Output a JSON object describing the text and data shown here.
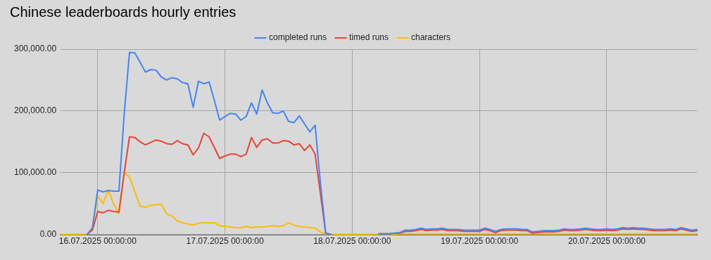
{
  "chart_data": {
    "type": "line",
    "title": "Chinese leaderboards hourly entries",
    "x": [
      "2025-07-15T17:00",
      "2025-07-15T18:00",
      "2025-07-15T19:00",
      "2025-07-15T20:00",
      "2025-07-15T21:00",
      "2025-07-15T22:00",
      "2025-07-15T23:00",
      "2025-07-16T00:00",
      "2025-07-16T01:00",
      "2025-07-16T02:00",
      "2025-07-16T03:00",
      "2025-07-16T04:00",
      "2025-07-16T05:00",
      "2025-07-16T06:00",
      "2025-07-16T07:00",
      "2025-07-16T08:00",
      "2025-07-16T09:00",
      "2025-07-16T10:00",
      "2025-07-16T11:00",
      "2025-07-16T12:00",
      "2025-07-16T13:00",
      "2025-07-16T14:00",
      "2025-07-16T15:00",
      "2025-07-16T16:00",
      "2025-07-16T17:00",
      "2025-07-16T18:00",
      "2025-07-16T19:00",
      "2025-07-16T20:00",
      "2025-07-16T21:00",
      "2025-07-16T22:00",
      "2025-07-16T23:00",
      "2025-07-17T00:00",
      "2025-07-17T01:00",
      "2025-07-17T02:00",
      "2025-07-17T03:00",
      "2025-07-17T04:00",
      "2025-07-17T05:00",
      "2025-07-17T06:00",
      "2025-07-17T07:00",
      "2025-07-17T08:00",
      "2025-07-17T09:00",
      "2025-07-17T10:00",
      "2025-07-17T11:00",
      "2025-07-17T12:00",
      "2025-07-17T13:00",
      "2025-07-17T14:00",
      "2025-07-17T15:00",
      "2025-07-17T16:00",
      "2025-07-17T17:00",
      "2025-07-17T18:00",
      "2025-07-17T19:00",
      "2025-07-17T20:00",
      "2025-07-17T21:00",
      "2025-07-17T22:00",
      "2025-07-17T23:00",
      "2025-07-18T00:00",
      "2025-07-18T01:00",
      "2025-07-18T02:00",
      "2025-07-18T03:00",
      "2025-07-18T04:00",
      "2025-07-18T05:00",
      "2025-07-18T06:00",
      "2025-07-18T07:00",
      "2025-07-18T08:00",
      "2025-07-18T09:00",
      "2025-07-18T10:00",
      "2025-07-18T11:00",
      "2025-07-18T12:00",
      "2025-07-18T13:00",
      "2025-07-18T14:00",
      "2025-07-18T15:00",
      "2025-07-18T16:00",
      "2025-07-18T17:00",
      "2025-07-18T18:00",
      "2025-07-18T19:00",
      "2025-07-18T20:00",
      "2025-07-18T21:00",
      "2025-07-18T22:00",
      "2025-07-18T23:00",
      "2025-07-19T00:00",
      "2025-07-19T01:00",
      "2025-07-19T02:00",
      "2025-07-19T03:00",
      "2025-07-19T04:00",
      "2025-07-19T05:00",
      "2025-07-19T06:00",
      "2025-07-19T07:00",
      "2025-07-19T08:00",
      "2025-07-19T09:00",
      "2025-07-19T10:00",
      "2025-07-19T11:00",
      "2025-07-19T12:00",
      "2025-07-19T13:00",
      "2025-07-19T14:00",
      "2025-07-19T15:00",
      "2025-07-19T16:00",
      "2025-07-19T17:00",
      "2025-07-19T18:00",
      "2025-07-19T19:00",
      "2025-07-19T20:00",
      "2025-07-19T21:00",
      "2025-07-19T22:00",
      "2025-07-19T23:00",
      "2025-07-20T00:00",
      "2025-07-20T01:00",
      "2025-07-20T02:00",
      "2025-07-20T03:00",
      "2025-07-20T04:00",
      "2025-07-20T05:00",
      "2025-07-20T06:00",
      "2025-07-20T07:00",
      "2025-07-20T08:00",
      "2025-07-20T09:00",
      "2025-07-20T10:00",
      "2025-07-20T11:00",
      "2025-07-20T12:00",
      "2025-07-20T13:00",
      "2025-07-20T14:00",
      "2025-07-20T15:00",
      "2025-07-20T16:00",
      "2025-07-20T17:00"
    ],
    "series": [
      {
        "name": "completed runs",
        "color": "#4285f4",
        "values": [
          null,
          null,
          null,
          null,
          null,
          0,
          10000,
          72000,
          69000,
          71000,
          70000,
          70000,
          195000,
          295000,
          294000,
          279000,
          263000,
          267000,
          266000,
          255000,
          250000,
          254000,
          252000,
          246000,
          244000,
          206000,
          248000,
          244000,
          247000,
          217000,
          185000,
          191000,
          196000,
          195000,
          185000,
          191000,
          213000,
          195000,
          234000,
          213000,
          197000,
          196000,
          200000,
          183000,
          181000,
          192000,
          179000,
          166000,
          177000,
          83000,
          2000,
          0,
          null,
          null,
          null,
          null,
          null,
          null,
          null,
          null,
          1000,
          1000,
          1000,
          2000,
          3000,
          7000,
          7000,
          8000,
          10000,
          8000,
          9000,
          9000,
          10000,
          8000,
          8000,
          8000,
          7000,
          7000,
          7000,
          7000,
          10000,
          8000,
          5000,
          8000,
          9000,
          9000,
          9000,
          8000,
          8000,
          4000,
          5000,
          6000,
          6000,
          6000,
          7000,
          9000,
          8000,
          8000,
          9000,
          10000,
          9000,
          8000,
          8000,
          9000,
          8000,
          9000,
          11000,
          10000,
          11000,
          10000,
          10000,
          9000,
          8000,
          8000,
          8000,
          9000,
          8000,
          11000,
          9000,
          7000,
          8000
        ]
      },
      {
        "name": "timed runs",
        "color": "#ea4335",
        "values": [
          null,
          null,
          null,
          null,
          null,
          0,
          7000,
          37000,
          35000,
          39000,
          37000,
          36000,
          100000,
          158000,
          157000,
          150000,
          145000,
          149000,
          153000,
          151000,
          147000,
          146000,
          152000,
          147000,
          145000,
          129000,
          140000,
          164000,
          158000,
          141000,
          123000,
          127000,
          130000,
          130000,
          126000,
          130000,
          157000,
          141000,
          153000,
          155000,
          148000,
          148000,
          152000,
          151000,
          145000,
          147000,
          136000,
          145000,
          130000,
          66000,
          2000,
          0,
          null,
          null,
          null,
          null,
          null,
          null,
          null,
          null,
          1000,
          1000,
          1000,
          2000,
          2000,
          5000,
          5000,
          6000,
          8000,
          6000,
          7000,
          7000,
          8000,
          6000,
          6000,
          6000,
          5000,
          5000,
          5000,
          5000,
          8000,
          6000,
          3000,
          6000,
          7000,
          7000,
          7000,
          6000,
          6000,
          2000,
          3000,
          4000,
          4000,
          4000,
          5000,
          7000,
          6000,
          6000,
          7000,
          8000,
          7000,
          6000,
          6000,
          7000,
          6000,
          7000,
          9000,
          8000,
          9000,
          8000,
          8000,
          7000,
          6000,
          6000,
          6000,
          7000,
          6000,
          9000,
          7000,
          5000,
          6000
        ]
      },
      {
        "name": "characters",
        "color": "#fbbc04",
        "values": [
          0,
          0,
          0,
          0,
          0,
          0,
          12000,
          62000,
          50000,
          72000,
          49000,
          34000,
          100000,
          93000,
          69000,
          46000,
          44000,
          47000,
          48000,
          49000,
          33000,
          30000,
          22000,
          19000,
          17000,
          15000,
          18000,
          19000,
          19000,
          19000,
          14000,
          13000,
          12000,
          11000,
          11000,
          13000,
          11000,
          12000,
          12000,
          13000,
          14000,
          13000,
          14000,
          19000,
          15000,
          13000,
          12000,
          11000,
          10000,
          4000,
          1000,
          0,
          0,
          0,
          0,
          0,
          0,
          0,
          0,
          0,
          0,
          0,
          0,
          0,
          1000,
          1000,
          1000,
          1000,
          1000,
          1000,
          1000,
          1000,
          1000,
          1000,
          1000,
          1000,
          1000,
          1000,
          1000,
          1000,
          1000,
          1000,
          1000,
          1000,
          1000,
          1000,
          1000,
          1000,
          1000,
          1000,
          1000,
          1000,
          1000,
          1000,
          1000,
          1000,
          1000,
          1000,
          1000,
          1000,
          1000,
          1000,
          1000,
          1000,
          1000,
          1000,
          1000,
          1000,
          1000,
          1000,
          1000,
          1000,
          1000,
          1000,
          1000,
          1000,
          1000,
          1000,
          1000,
          1000,
          1000
        ]
      }
    ],
    "xlim": [
      "2025-07-15T17:00",
      "2025-07-20T17:00"
    ],
    "xticks": [
      {
        "value": "2025-07-16T00:00",
        "label": "16.07.2025 00:00:00"
      },
      {
        "value": "2025-07-17T00:00",
        "label": "17.07.2025 00:00:00"
      },
      {
        "value": "2025-07-18T00:00",
        "label": "18.07.2025 00:00:00"
      },
      {
        "value": "2025-07-19T00:00",
        "label": "19.07.2025 00:00:00"
      },
      {
        "value": "2025-07-20T00:00",
        "label": "20.07.2025 00:00:00"
      }
    ],
    "ylim": [
      0,
      300000
    ],
    "yticks": [
      {
        "value": 0,
        "label": "0.00"
      },
      {
        "value": 100000,
        "label": "100,000.00"
      },
      {
        "value": 200000,
        "label": "200,000.00"
      },
      {
        "value": 300000,
        "label": "300,000.00"
      }
    ],
    "grid": true,
    "legend": "top",
    "marker": "none",
    "line_style": "solid"
  }
}
